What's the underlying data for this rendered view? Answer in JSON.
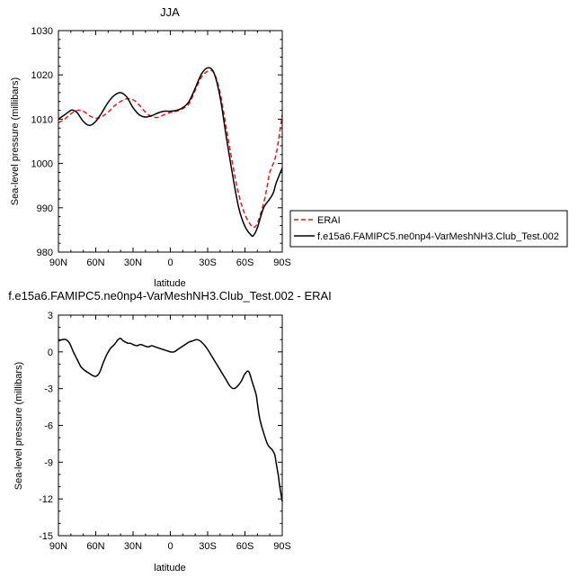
{
  "chart_data": [
    {
      "type": "line",
      "title": "JJA",
      "xlabel": "latitude",
      "ylabel": "Sea-level pressure (millibars)",
      "xlim": [
        90,
        -90
      ],
      "ylim": [
        980,
        1030
      ],
      "xticks": [
        90,
        60,
        30,
        0,
        -30,
        -60,
        -90
      ],
      "xtick_labels": [
        "90N",
        "60N",
        "30N",
        "0",
        "30S",
        "60S",
        "90S"
      ],
      "yticks": [
        980,
        990,
        1000,
        1010,
        1020,
        1030
      ],
      "ytick_labels": [
        "980",
        "990",
        "1000",
        "1010",
        "1020",
        "1030"
      ],
      "legend": "outside-right",
      "series": [
        {
          "name": "ERAI",
          "color": "#e8141b",
          "dash": "dashed",
          "x": [
            90,
            85,
            80,
            75,
            70,
            65,
            60,
            55,
            50,
            45,
            40,
            35,
            30,
            25,
            20,
            15,
            10,
            5,
            0,
            -5,
            -10,
            -15,
            -20,
            -25,
            -30,
            -35,
            -40,
            -45,
            -50,
            -55,
            -60,
            -65,
            -67,
            -70,
            -75,
            -78,
            -80,
            -85,
            -90
          ],
          "y": [
            1009.2,
            1010.0,
            1011.2,
            1012.0,
            1011.8,
            1010.8,
            1010.2,
            1010.6,
            1011.6,
            1013.0,
            1014.0,
            1014.6,
            1014.4,
            1013.2,
            1011.6,
            1010.6,
            1010.4,
            1011.0,
            1011.5,
            1011.8,
            1012.4,
            1013.5,
            1016.5,
            1019.5,
            1020.8,
            1020.5,
            1016.0,
            1008.0,
            1000.0,
            993.0,
            988.5,
            986.0,
            985.6,
            986.5,
            991.0,
            995.0,
            998.0,
            1002.0,
            1011.0
          ]
        },
        {
          "name": "f.e15a6.FAMIPC5.ne0np4-VarMeshNH3.Club_Test.002",
          "color": "#000000",
          "dash": "solid",
          "x": [
            90,
            85,
            80,
            78,
            75,
            70,
            65,
            60,
            55,
            50,
            45,
            40,
            35,
            30,
            25,
            20,
            15,
            10,
            5,
            0,
            -5,
            -10,
            -15,
            -20,
            -25,
            -30,
            -35,
            -40,
            -45,
            -50,
            -55,
            -60,
            -65,
            -67,
            -70,
            -75,
            -80,
            -83,
            -85,
            -90
          ],
          "y": [
            1010.0,
            1011.0,
            1012.0,
            1012.0,
            1011.5,
            1009.5,
            1008.6,
            1009.5,
            1011.5,
            1013.8,
            1015.4,
            1016.0,
            1015.0,
            1012.6,
            1011.0,
            1010.5,
            1010.8,
            1011.4,
            1011.8,
            1011.8,
            1012.0,
            1012.6,
            1014.0,
            1017.0,
            1020.2,
            1021.6,
            1020.5,
            1015.0,
            1006.0,
            997.5,
            990.0,
            985.8,
            983.8,
            983.8,
            985.5,
            990.0,
            992.0,
            993.5,
            995.5,
            999.0
          ]
        }
      ]
    },
    {
      "type": "line",
      "title": "f.e15a6.FAMIPC5.ne0np4-VarMeshNH3.Club_Test.002 - ERAI",
      "xlabel": "latitude",
      "ylabel": "Sea-level pressure (millibars)",
      "xlim": [
        90,
        -90
      ],
      "ylim": [
        -15,
        3
      ],
      "xticks": [
        90,
        60,
        30,
        0,
        -30,
        -60,
        -90
      ],
      "xtick_labels": [
        "90N",
        "60N",
        "30N",
        "0",
        "30S",
        "60S",
        "90S"
      ],
      "yticks": [
        -15,
        -12,
        -9,
        -6,
        -3,
        0,
        3
      ],
      "ytick_labels": [
        "-15",
        "-12",
        "-9",
        "-6",
        "-3",
        "0",
        "3"
      ],
      "series": [
        {
          "color": "#000000",
          "dash": "solid",
          "x": [
            90,
            87,
            84,
            81,
            78,
            75,
            72,
            69,
            66,
            63,
            60,
            57,
            54,
            51,
            48,
            45,
            42,
            40,
            38,
            36,
            34,
            32,
            30,
            27,
            24,
            21,
            18,
            15,
            12,
            9,
            6,
            3,
            0,
            -3,
            -6,
            -9,
            -12,
            -15,
            -18,
            -21,
            -24,
            -27,
            -30,
            -33,
            -36,
            -39,
            -42,
            -45,
            -48,
            -51,
            -54,
            -57,
            -60,
            -63,
            -66,
            -69,
            -70,
            -72,
            -75,
            -78,
            -80,
            -82,
            -84,
            -85,
            -86,
            -87,
            -88,
            -89,
            -90
          ],
          "y": [
            0.9,
            1.0,
            1.0,
            0.7,
            0.0,
            -0.6,
            -1.2,
            -1.5,
            -1.7,
            -1.9,
            -2.0,
            -1.7,
            -0.9,
            -0.2,
            0.3,
            0.6,
            1.0,
            1.1,
            0.9,
            0.8,
            0.7,
            0.7,
            0.6,
            0.5,
            0.6,
            0.5,
            0.4,
            0.5,
            0.4,
            0.3,
            0.2,
            0.1,
            0.0,
            0.0,
            0.2,
            0.4,
            0.6,
            0.8,
            0.9,
            1.0,
            0.9,
            0.6,
            0.2,
            -0.3,
            -0.8,
            -1.3,
            -1.8,
            -2.3,
            -2.8,
            -3.0,
            -2.8,
            -2.4,
            -1.8,
            -1.6,
            -2.5,
            -3.5,
            -4.2,
            -5.5,
            -6.6,
            -7.5,
            -7.8,
            -8.0,
            -8.4,
            -9.0,
            -9.6,
            -10.2,
            -11.0,
            -11.6,
            -12.2
          ]
        }
      ]
    }
  ]
}
